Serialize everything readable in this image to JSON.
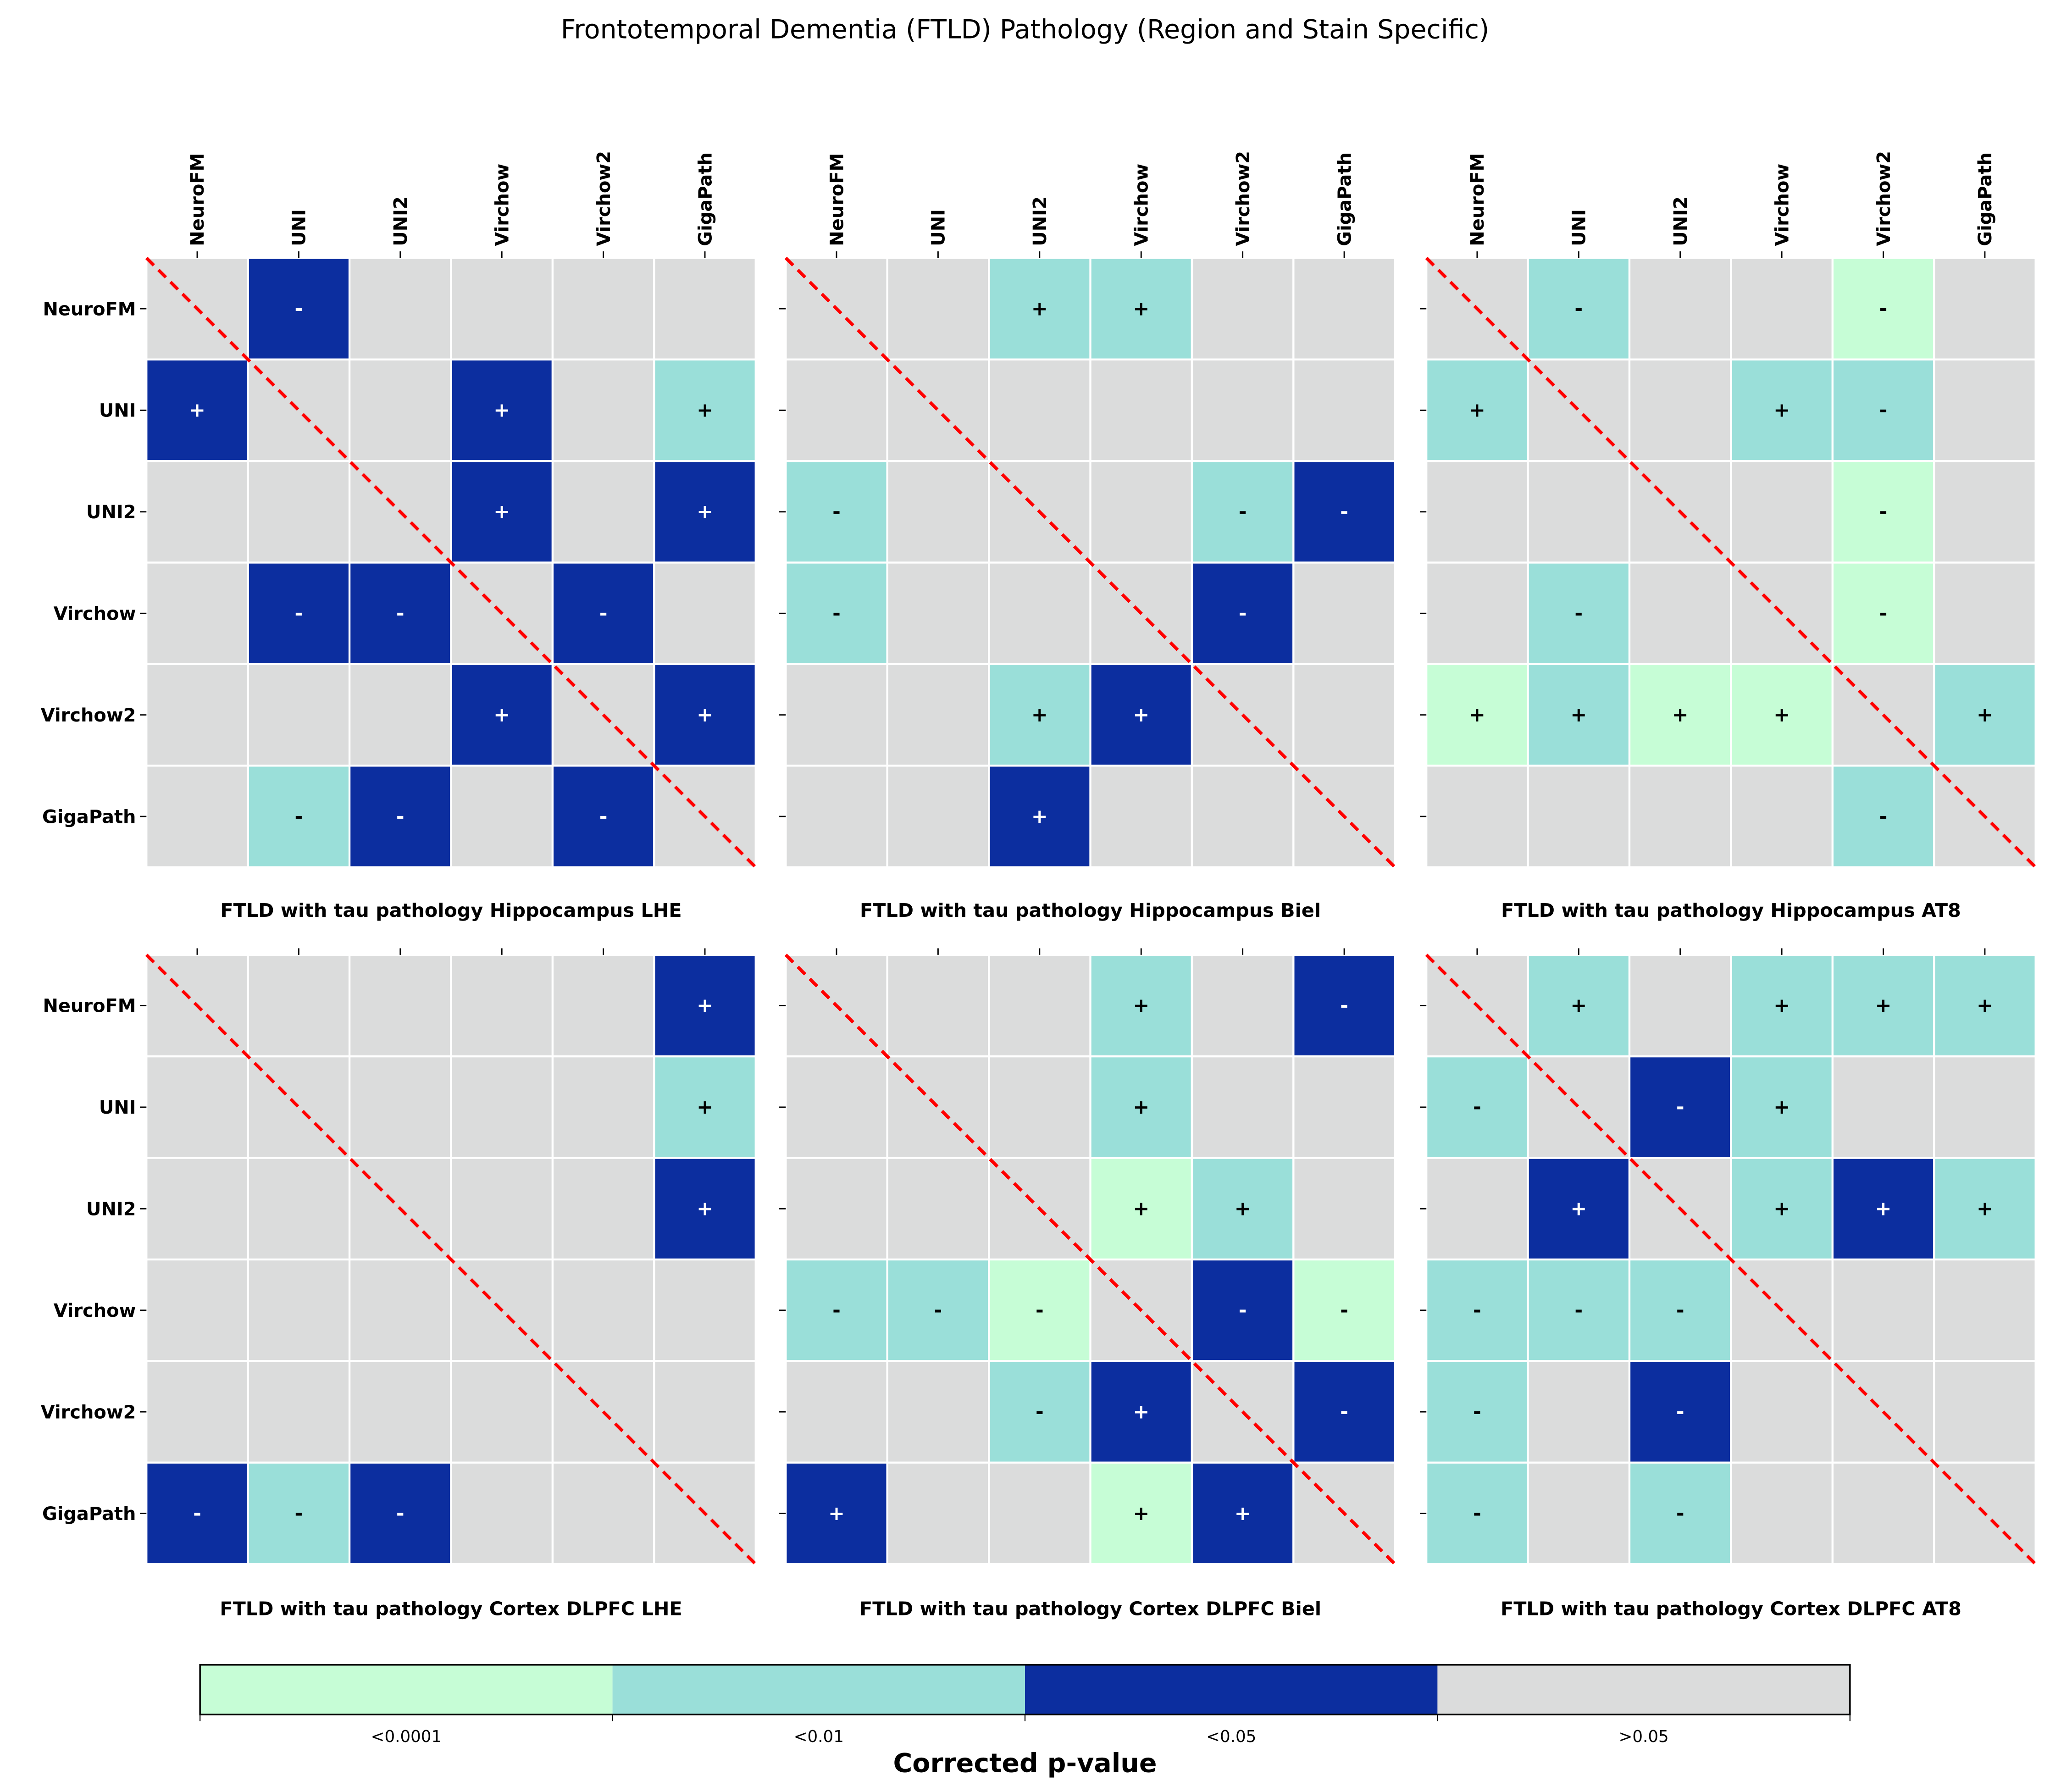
{
  "chart_data": {
    "type": "heatmap",
    "title": "Frontotemporal Dementia (FTLD) Pathology (Region and Stain Specific)",
    "models": [
      "NeuroFM",
      "UNI",
      "UNI2",
      "Virchow",
      "Virchow2",
      "GigaPath"
    ],
    "colorbar": {
      "label": "Corrected p-value",
      "categories": [
        "<0.0001",
        "<0.01",
        "<0.05",
        ">0.05"
      ],
      "colors": {
        "<0.0001": "#c6fdd6",
        "<0.01": "#9adfd9",
        "<0.05": "#0c2e9f",
        ">0.05": "#dbdcdc"
      }
    },
    "diagonal_line_color": "#ff0000",
    "legend_note": "cells: p-value category | sign of difference",
    "panels": [
      {
        "title": "FTLD with tau pathology Hippocampus LHE",
        "cells": [
          [
            "",
            "<0.05|-",
            "",
            "",
            "",
            ""
          ],
          [
            "<0.05|+",
            "",
            "",
            "<0.05|+",
            "",
            "<0.01|+"
          ],
          [
            "",
            "",
            "",
            "<0.05|+",
            "",
            "<0.05|+"
          ],
          [
            "",
            "<0.05|-",
            "<0.05|-",
            "",
            "<0.05|-",
            ""
          ],
          [
            "",
            "",
            "",
            "<0.05|+",
            "",
            "<0.05|+"
          ],
          [
            "",
            "<0.01|-",
            "<0.05|-",
            "",
            "<0.05|-",
            ""
          ]
        ]
      },
      {
        "title": "FTLD with tau pathology Hippocampus Biel",
        "cells": [
          [
            "",
            "",
            "<0.01|+",
            "<0.01|+",
            "",
            ""
          ],
          [
            "",
            "",
            "",
            "",
            "",
            ""
          ],
          [
            "<0.01|-",
            "",
            "",
            "",
            "<0.01|-",
            "<0.05|-"
          ],
          [
            "<0.01|-",
            "",
            "",
            "",
            "<0.05|-",
            ""
          ],
          [
            "",
            "",
            "<0.01|+",
            "<0.05|+",
            "",
            ""
          ],
          [
            "",
            "",
            "<0.05|+",
            "",
            "",
            ""
          ]
        ]
      },
      {
        "title": "FTLD with tau pathology Hippocampus AT8",
        "cells": [
          [
            "",
            "<0.01|-",
            "",
            "",
            "<0.0001|-",
            ""
          ],
          [
            "<0.01|+",
            "",
            "",
            "<0.01|+",
            "<0.01|-",
            ""
          ],
          [
            "",
            "",
            "",
            "",
            "<0.0001|-",
            ""
          ],
          [
            "",
            "<0.01|-",
            "",
            "",
            "<0.0001|-",
            ""
          ],
          [
            "<0.0001|+",
            "<0.01|+",
            "<0.0001|+",
            "<0.0001|+",
            "",
            "<0.01|+"
          ],
          [
            "",
            "",
            "",
            "",
            "<0.01|-",
            ""
          ]
        ]
      },
      {
        "title": "FTLD with tau pathology Cortex DLPFC LHE",
        "cells": [
          [
            "",
            "",
            "",
            "",
            "",
            "<0.05|+"
          ],
          [
            "",
            "",
            "",
            "",
            "",
            "<0.01|+"
          ],
          [
            "",
            "",
            "",
            "",
            "",
            "<0.05|+"
          ],
          [
            "",
            "",
            "",
            "",
            "",
            ""
          ],
          [
            "",
            "",
            "",
            "",
            "",
            ""
          ],
          [
            "<0.05|-",
            "<0.01|-",
            "<0.05|-",
            "",
            "",
            ""
          ]
        ]
      },
      {
        "title": "FTLD with tau pathology Cortex DLPFC Biel",
        "cells": [
          [
            "",
            "",
            "",
            "<0.01|+",
            "",
            "<0.05|-"
          ],
          [
            "",
            "",
            "",
            "<0.01|+",
            "",
            ""
          ],
          [
            "",
            "",
            "",
            "<0.0001|+",
            "<0.01|+",
            ""
          ],
          [
            "<0.01|-",
            "<0.01|-",
            "<0.0001|-",
            "",
            "<0.05|-",
            "<0.0001|-"
          ],
          [
            "",
            "",
            "<0.01|-",
            "<0.05|+",
            "",
            "<0.05|-"
          ],
          [
            "<0.05|+",
            "",
            "",
            "<0.0001|+",
            "<0.05|+",
            ""
          ]
        ]
      },
      {
        "title": "FTLD with tau pathology Cortex DLPFC AT8",
        "cells": [
          [
            "",
            "<0.01|+",
            "",
            "<0.01|+",
            "<0.01|+",
            "<0.01|+"
          ],
          [
            "<0.01|-",
            "",
            "<0.05|-",
            "<0.01|+",
            "",
            ""
          ],
          [
            "",
            "<0.05|+",
            "",
            "<0.01|+",
            "<0.05|+",
            "<0.01|+"
          ],
          [
            "<0.01|-",
            "<0.01|-",
            "<0.01|-",
            "",
            "",
            ""
          ],
          [
            "<0.01|-",
            "",
            "<0.05|-",
            "",
            "",
            ""
          ],
          [
            "<0.01|-",
            "",
            "<0.01|-",
            "",
            "",
            ""
          ]
        ]
      }
    ]
  }
}
